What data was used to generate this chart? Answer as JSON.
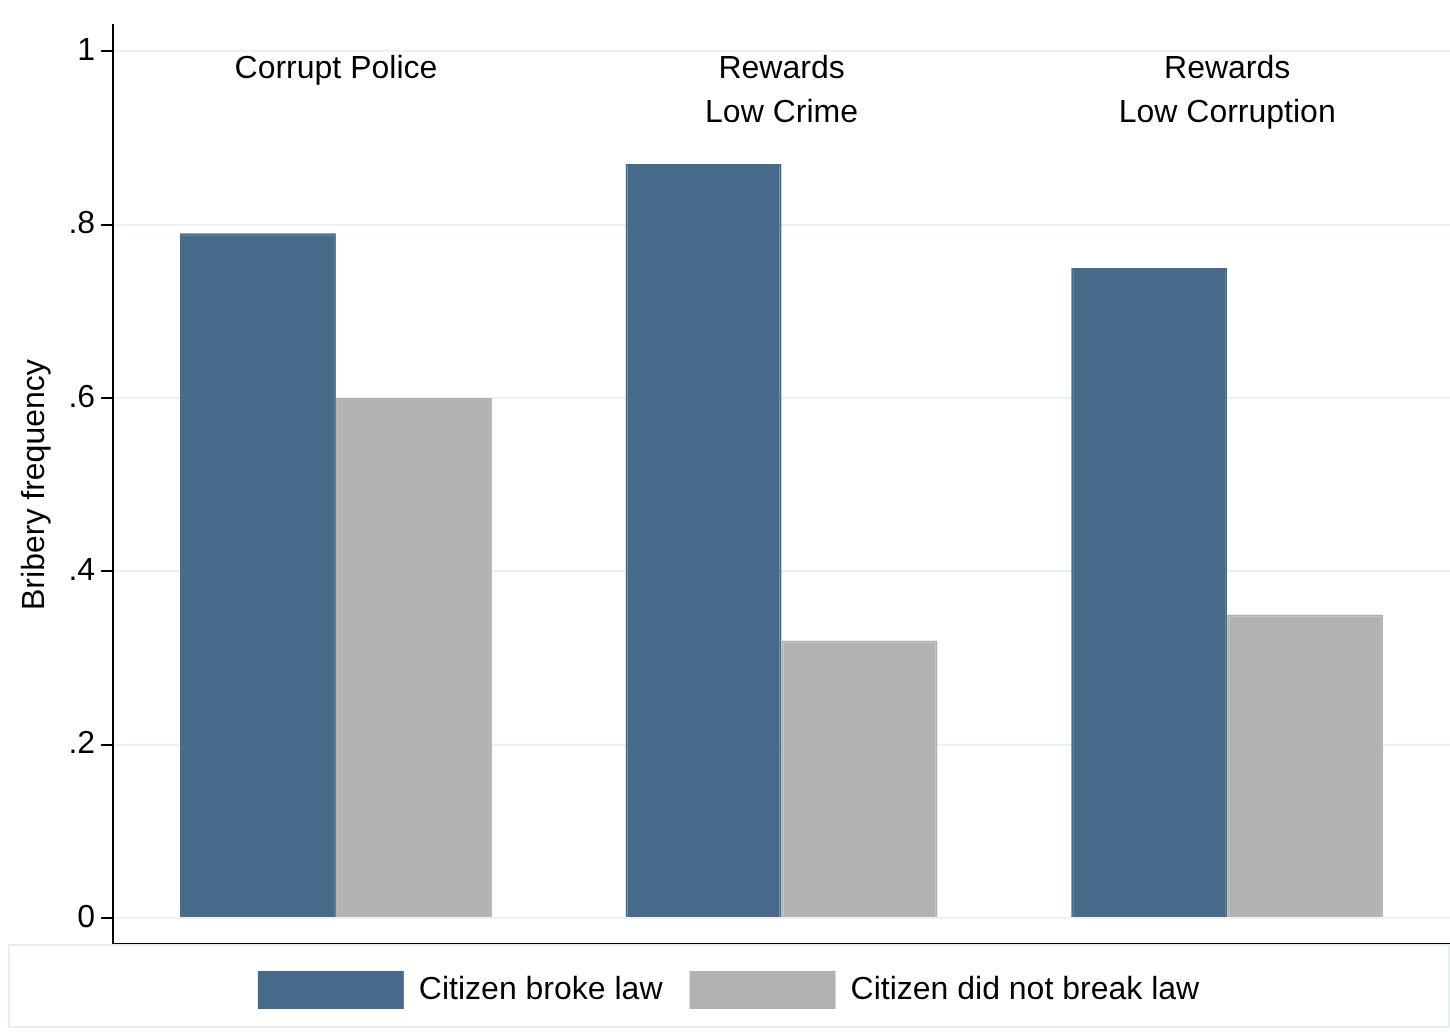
{
  "chart_data": {
    "type": "bar",
    "ylabel": "Bribery frequency",
    "categories": [
      "Corrupt Police",
      "Rewards\nLow Crime",
      "Rewards\nLow Corruption"
    ],
    "series": [
      {
        "name": "Citizen broke law",
        "color": "#476a8a",
        "values": [
          0.79,
          0.87,
          0.75
        ]
      },
      {
        "name": "Citizen did not break law",
        "color": "#b2b2b2",
        "values": [
          0.6,
          0.32,
          0.35
        ]
      }
    ],
    "ylim": [
      -0.03,
      1.03
    ],
    "yticks": [
      0,
      {
        "value": 0.2,
        "label": ".2"
      },
      {
        "value": 0.4,
        "label": ".4"
      },
      {
        "value": 0.6,
        "label": ".6"
      },
      {
        "value": 0.8,
        "label": ".8"
      },
      1
    ],
    "grid": "y",
    "legend": "bottom"
  }
}
